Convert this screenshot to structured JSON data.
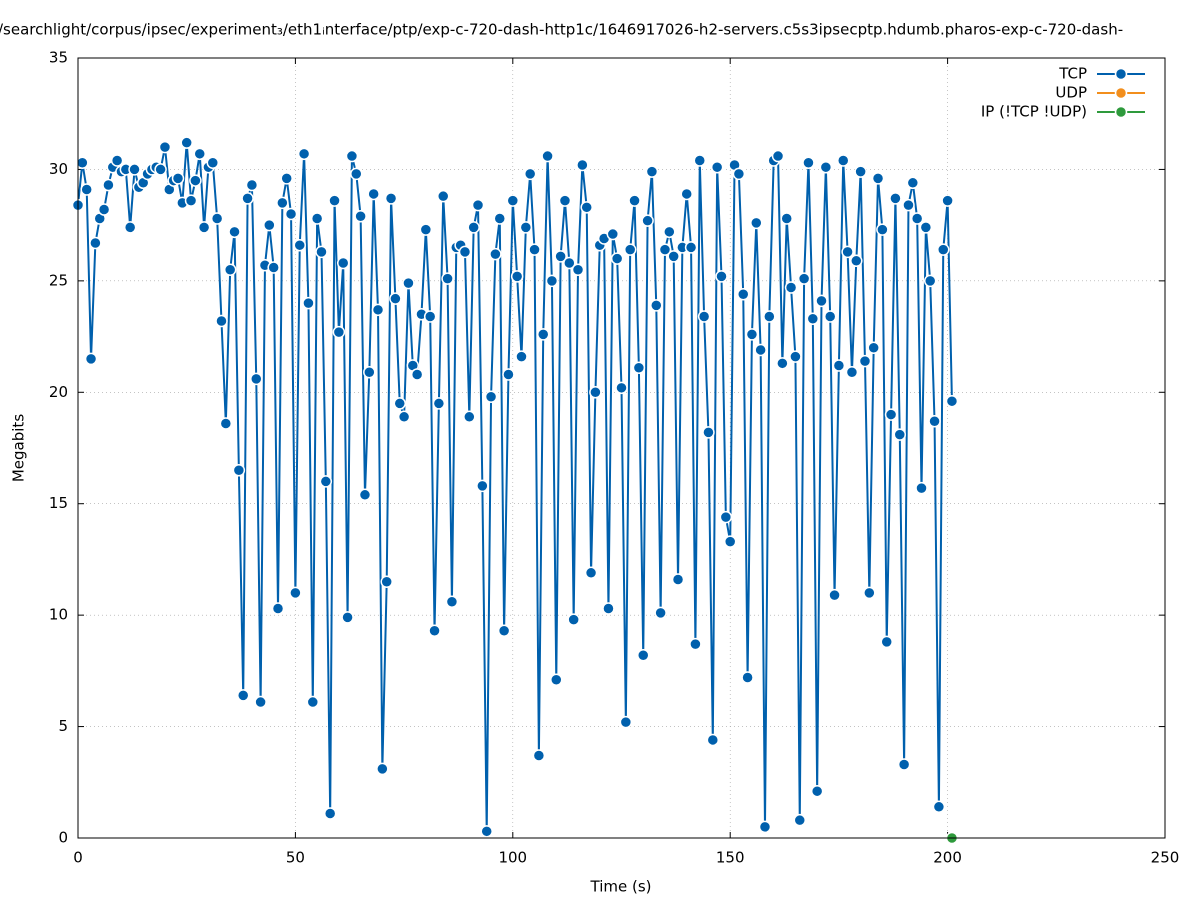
{
  "chart_data": {
    "type": "line",
    "title": "/searchlight/corpus/ipsec/experiment₃/eth1ᵢnterface/ptp/exp-c-720-dash-http1c/1646917026-h2-servers.c5s3ipsecptp.hdumb.pharos-exp-c-720-dash-",
    "xlabel": "Time (s)",
    "ylabel": "Megabits",
    "xlim": [
      0,
      250
    ],
    "xticks": [
      0,
      50,
      100,
      150,
      200,
      250
    ],
    "ylim": [
      0,
      35
    ],
    "yticks": [
      0,
      5,
      10,
      15,
      20,
      25,
      30,
      35
    ],
    "grid": true,
    "legend": "top-right",
    "x": [
      0,
      1,
      2,
      3,
      4,
      5,
      6,
      7,
      8,
      9,
      10,
      11,
      12,
      13,
      14,
      15,
      16,
      17,
      18,
      19,
      20,
      21,
      22,
      23,
      24,
      25,
      26,
      27,
      28,
      29,
      30,
      31,
      32,
      33,
      34,
      35,
      36,
      37,
      38,
      39,
      40,
      41,
      42,
      43,
      44,
      45,
      46,
      47,
      48,
      49,
      50,
      51,
      52,
      53,
      54,
      55,
      56,
      57,
      58,
      59,
      60,
      61,
      62,
      63,
      64,
      65,
      66,
      67,
      68,
      69,
      70,
      71,
      72,
      73,
      74,
      75,
      76,
      77,
      78,
      79,
      80,
      81,
      82,
      83,
      84,
      85,
      86,
      87,
      88,
      89,
      90,
      91,
      92,
      93,
      94,
      95,
      96,
      97,
      98,
      99,
      100,
      101,
      102,
      103,
      104,
      105,
      106,
      107,
      108,
      109,
      110,
      111,
      112,
      113,
      114,
      115,
      116,
      117,
      118,
      119,
      120,
      121,
      122,
      123,
      124,
      125,
      126,
      127,
      128,
      129,
      130,
      131,
      132,
      133,
      134,
      135,
      136,
      137,
      138,
      139,
      140,
      141,
      142,
      143,
      144,
      145,
      146,
      147,
      148,
      149,
      150,
      151,
      152,
      153,
      154,
      155,
      156,
      157,
      158,
      159,
      160,
      161,
      162,
      163,
      164,
      165,
      166,
      167,
      168,
      169,
      170,
      171,
      172,
      173,
      174,
      175,
      176,
      177,
      178,
      179,
      180,
      181,
      182,
      183,
      184,
      185,
      186,
      187,
      188,
      189,
      190,
      191,
      192,
      193,
      194,
      195,
      196,
      197,
      198,
      199,
      200,
      201
    ],
    "series": [
      {
        "name": "TCP",
        "color": "#0060ad",
        "values": [
          28.4,
          30.3,
          29.1,
          21.5,
          26.7,
          27.8,
          28.2,
          29.3,
          30.1,
          30.4,
          29.9,
          30.0,
          27.4,
          30.0,
          29.2,
          29.4,
          29.8,
          30.0,
          30.1,
          30.0,
          31.0,
          29.1,
          29.5,
          29.6,
          28.5,
          31.2,
          28.6,
          29.5,
          30.7,
          27.4,
          30.1,
          30.3,
          27.8,
          23.2,
          18.6,
          25.5,
          27.2,
          16.5,
          6.4,
          28.7,
          29.3,
          20.6,
          6.1,
          25.7,
          27.5,
          25.6,
          10.3,
          28.5,
          29.6,
          28.0,
          11.0,
          26.6,
          30.7,
          24.0,
          6.1,
          27.8,
          26.3,
          16.0,
          1.1,
          28.6,
          22.7,
          25.8,
          9.9,
          30.6,
          29.8,
          27.9,
          15.4,
          20.9,
          28.9,
          23.7,
          3.1,
          11.5,
          28.7,
          24.2,
          19.5,
          18.9,
          24.9,
          21.2,
          20.8,
          23.5,
          27.3,
          23.4,
          9.3,
          19.5,
          28.8,
          25.1,
          10.6,
          26.5,
          26.6,
          26.3,
          18.9,
          27.4,
          28.4,
          15.8,
          0.3,
          19.8,
          26.2,
          27.8,
          9.3,
          20.8,
          28.6,
          25.2,
          21.6,
          27.4,
          29.8,
          26.4,
          3.7,
          22.6,
          30.6,
          25.0,
          7.1,
          26.1,
          28.6,
          25.8,
          9.8,
          25.5,
          30.2,
          28.3,
          11.9,
          20.0,
          26.6,
          26.9,
          10.3,
          27.1,
          26.0,
          20.2,
          5.2,
          26.4,
          28.6,
          21.1,
          8.2,
          27.7,
          29.9,
          23.9,
          10.1,
          26.4,
          27.2,
          26.1,
          11.6,
          26.5,
          28.9,
          26.5,
          8.7,
          30.4,
          23.4,
          18.2,
          4.4,
          30.1,
          25.2,
          14.4,
          13.3,
          30.2,
          29.8,
          24.4,
          7.2,
          22.6,
          27.6,
          21.9,
          0.5,
          23.4,
          30.4,
          30.6,
          21.3,
          27.8,
          24.7,
          21.6,
          0.8,
          25.1,
          30.3,
          23.3,
          2.1,
          24.1,
          30.1,
          23.4,
          10.9,
          21.2,
          30.4,
          26.3,
          20.9,
          25.9,
          29.9,
          21.4,
          11.0,
          22.0,
          29.6,
          27.3,
          8.8,
          19.0,
          28.7,
          18.1,
          3.3,
          28.4,
          29.4,
          27.8,
          15.7,
          27.4,
          25.0,
          18.7,
          1.4,
          26.4,
          28.6,
          19.6
        ]
      },
      {
        "name": "UDP",
        "color": "#f28e1c",
        "values": [
          null,
          null,
          null,
          null,
          null,
          null,
          null,
          null,
          null,
          null,
          null,
          null,
          null,
          null,
          null,
          null,
          null,
          null,
          null,
          null,
          null,
          null,
          null,
          null,
          null,
          null,
          null,
          null,
          null,
          null,
          null,
          null,
          null,
          null,
          null,
          null,
          null,
          null,
          null,
          null,
          null,
          null,
          null,
          null,
          null,
          null,
          null,
          null,
          null,
          null,
          null,
          null,
          null,
          null,
          null,
          null,
          null,
          null,
          null,
          null,
          null,
          null,
          null,
          null,
          null,
          null,
          null,
          null,
          null,
          null,
          null,
          null,
          null,
          null,
          null,
          null,
          null,
          null,
          null,
          null,
          null,
          null,
          null,
          null,
          null,
          null,
          null,
          null,
          null,
          null,
          null,
          null,
          null,
          null,
          null,
          null,
          null,
          null,
          null,
          null,
          null,
          null,
          null,
          null,
          null,
          null,
          null,
          null,
          null,
          null,
          null,
          null,
          null,
          null,
          null,
          null,
          null,
          null,
          null,
          null,
          null,
          null,
          null,
          null,
          null,
          null,
          null,
          null,
          null,
          null,
          null,
          null,
          null,
          null,
          null,
          null,
          null,
          null,
          null,
          null,
          null,
          null,
          null,
          null,
          null,
          null,
          null,
          null,
          null,
          null,
          null,
          null,
          null,
          null,
          null,
          null,
          null,
          null,
          null,
          null,
          null,
          null,
          null,
          null,
          null,
          null,
          null,
          null,
          null,
          null,
          null,
          null,
          null,
          null,
          null,
          null,
          null,
          null,
          null,
          null,
          null,
          null,
          null,
          null,
          null,
          null,
          null,
          null,
          null,
          null,
          null,
          null,
          null,
          null,
          null,
          null,
          null,
          null,
          null,
          null,
          null,
          null
        ]
      },
      {
        "name": "IP (!TCP  !UDP)",
        "color": "#2e9a3c",
        "values": [
          null,
          null,
          null,
          null,
          null,
          null,
          null,
          null,
          null,
          null,
          null,
          null,
          null,
          null,
          null,
          null,
          null,
          null,
          null,
          null,
          null,
          null,
          null,
          null,
          null,
          null,
          null,
          null,
          null,
          null,
          null,
          null,
          null,
          null,
          null,
          null,
          null,
          null,
          null,
          null,
          null,
          null,
          null,
          null,
          null,
          null,
          null,
          null,
          null,
          null,
          null,
          null,
          null,
          null,
          null,
          null,
          null,
          null,
          null,
          null,
          null,
          null,
          null,
          null,
          null,
          null,
          null,
          null,
          null,
          null,
          null,
          null,
          null,
          null,
          null,
          null,
          null,
          null,
          null,
          null,
          null,
          null,
          null,
          null,
          null,
          null,
          null,
          null,
          null,
          null,
          null,
          null,
          null,
          null,
          null,
          null,
          null,
          null,
          null,
          null,
          null,
          null,
          null,
          null,
          null,
          null,
          null,
          null,
          null,
          null,
          null,
          null,
          null,
          null,
          null,
          null,
          null,
          null,
          null,
          null,
          null,
          null,
          null,
          null,
          null,
          null,
          null,
          null,
          null,
          null,
          null,
          null,
          null,
          null,
          null,
          null,
          null,
          null,
          null,
          null,
          null,
          null,
          null,
          null,
          null,
          null,
          null,
          null,
          null,
          null,
          null,
          null,
          null,
          null,
          null,
          null,
          null,
          null,
          null,
          null,
          null,
          null,
          null,
          null,
          null,
          null,
          null,
          null,
          null,
          null,
          null,
          null,
          null,
          null,
          null,
          null,
          null,
          null,
          null,
          null,
          null,
          null,
          null,
          null,
          null,
          null,
          null,
          null,
          null,
          null,
          null,
          null,
          null,
          null,
          null,
          null,
          null,
          null,
          null,
          null,
          null,
          0
        ]
      }
    ]
  }
}
